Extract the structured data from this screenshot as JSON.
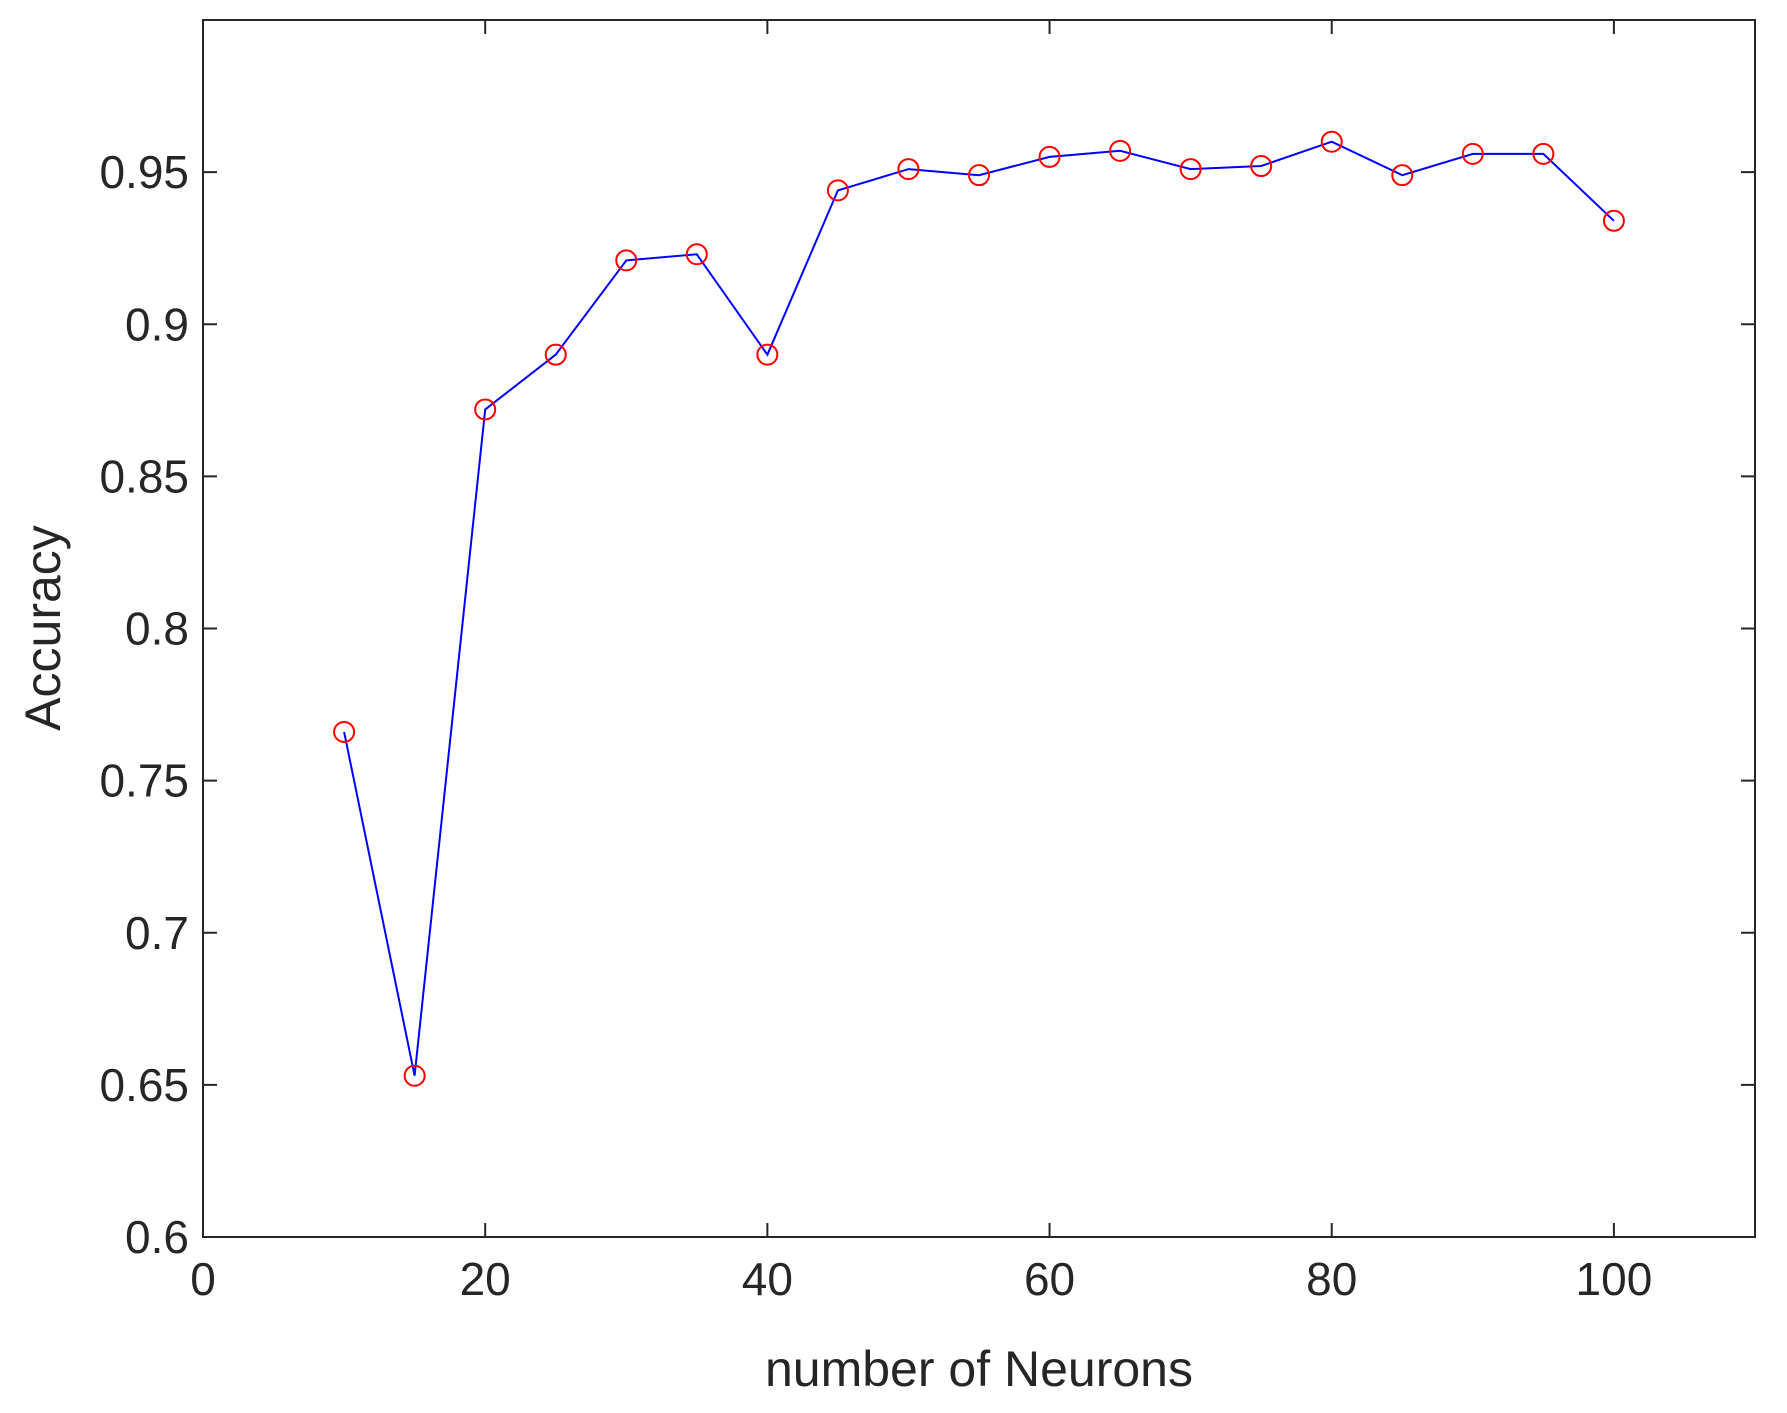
{
  "chart_data": {
    "type": "line",
    "title": "",
    "xlabel": "number of Neurons",
    "ylabel": "Accuracy",
    "xlim": [
      0,
      110
    ],
    "ylim": [
      0.6,
      1.0
    ],
    "xticks": [
      0,
      20,
      40,
      60,
      80,
      100
    ],
    "yticks": [
      0.6,
      0.65,
      0.7,
      0.75,
      0.8,
      0.85,
      0.9,
      0.95
    ],
    "xtick_labels": [
      "0",
      "20",
      "40",
      "60",
      "80",
      "100"
    ],
    "ytick_labels": [
      "0.6",
      "0.65",
      "0.7",
      "0.75",
      "0.8",
      "0.85",
      "0.9",
      "0.95"
    ],
    "grid": false,
    "line_color": "#0000ff",
    "marker_color": "#ff0000",
    "marker": "circle",
    "series": [
      {
        "x": [
          10,
          15,
          20,
          25,
          30,
          35,
          40,
          45,
          50,
          55,
          60,
          65,
          70,
          75,
          80,
          85,
          90,
          95,
          100
        ],
        "values": [
          0.766,
          0.653,
          0.872,
          0.89,
          0.921,
          0.923,
          0.89,
          0.944,
          0.951,
          0.949,
          0.955,
          0.957,
          0.951,
          0.952,
          0.96,
          0.949,
          0.956,
          0.956,
          0.934
        ]
      }
    ]
  }
}
